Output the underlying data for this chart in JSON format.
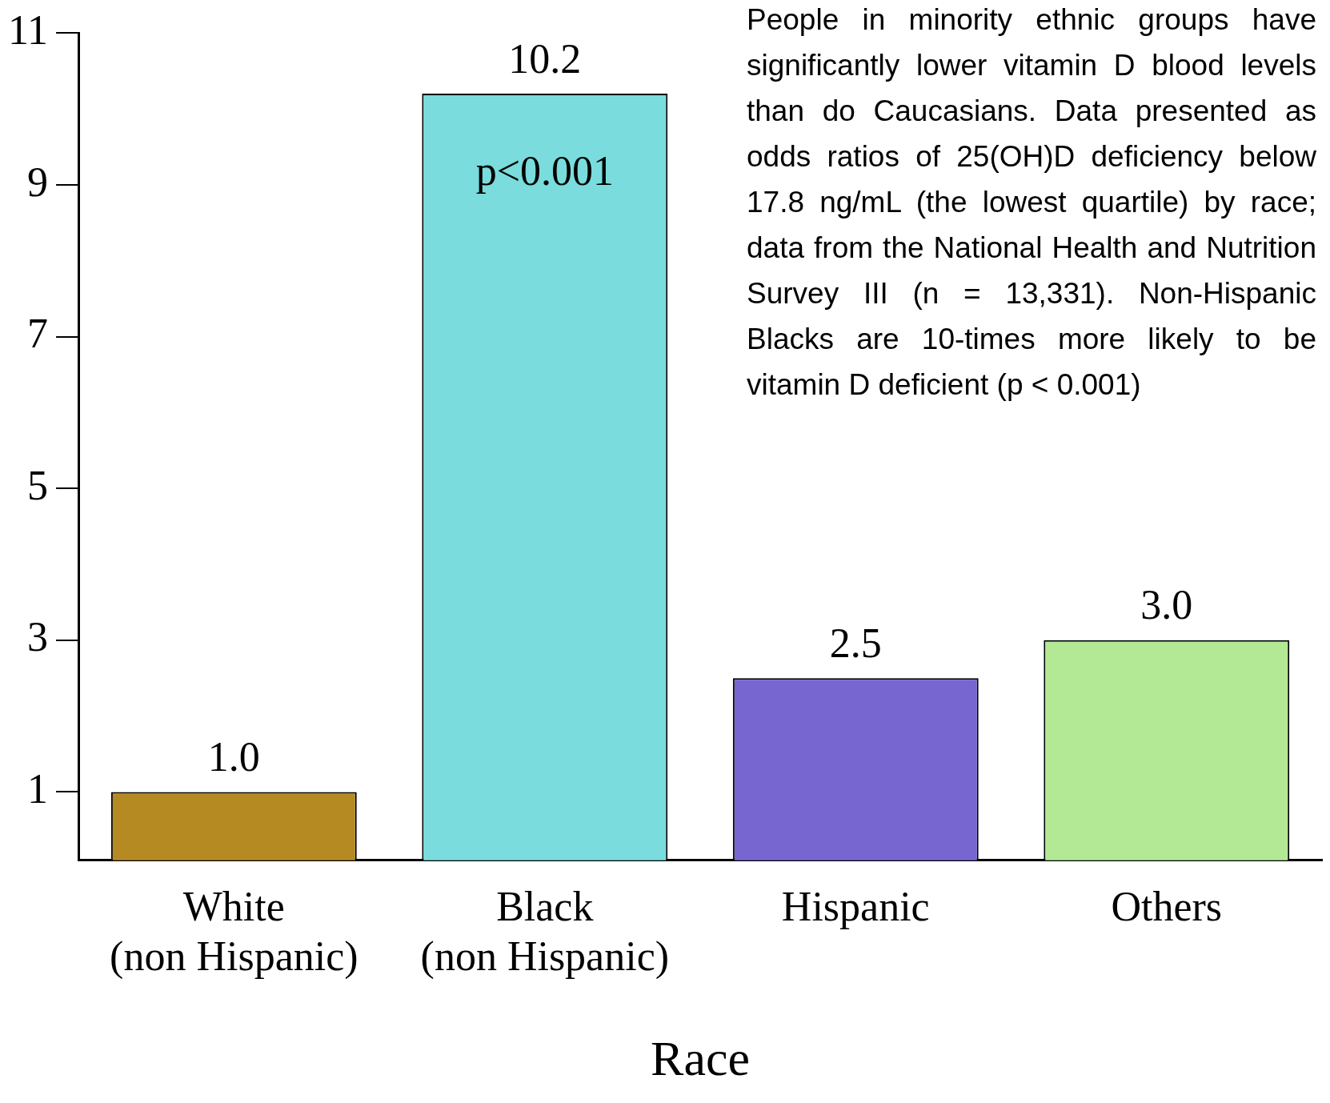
{
  "chart_data": {
    "type": "bar",
    "xlabel": "Race",
    "categories": [
      "White\n(non Hispanic)",
      "Black\n(non Hispanic)",
      "Hispanic",
      "Others"
    ],
    "values": [
      1.0,
      10.2,
      2.5,
      3.0
    ],
    "colors": [
      "#b58a22",
      "#7adcdc",
      "#7766d0",
      "#b3e894"
    ],
    "value_labels": [
      "1.0",
      "10.2",
      "2.5",
      "3.0"
    ],
    "ylim": [
      0.1,
      11
    ],
    "yticks": [
      1,
      3,
      5,
      7,
      9,
      11
    ],
    "grid": false,
    "legend": false,
    "annotations": [
      "People in minority ethnic groups have significantly lower vitamin D blood levels than do Caucasians. Data presented as odds ratios of 25(OH)D deficiency below 17.8 ng/mL (the lowest quartile) by race; data from the National Health and Nutrition Survey III (n = 13,331). Non-Hispanic Blacks are 10-times more likely to be vitamin D deficient (p < 0.001)",
      "p<0.001"
    ]
  }
}
